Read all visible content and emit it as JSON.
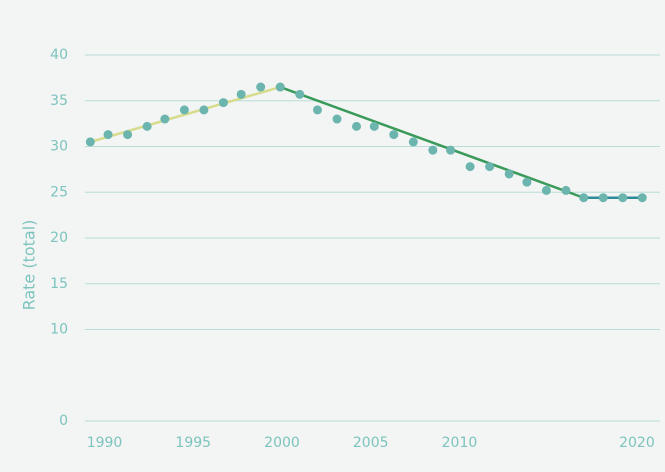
{
  "chart_data": {
    "type": "scatter",
    "y_label": "Rate (total)",
    "x": [
      1989.2,
      1990.2,
      1991.3,
      1992.4,
      1993.4,
      1994.5,
      1995.6,
      1996.7,
      1997.7,
      1998.8,
      1999.9,
      2001.0,
      2002.0,
      2003.1,
      2004.2,
      2005.2,
      2006.3,
      2007.4,
      2008.5,
      2009.5,
      2010.6,
      2011.7,
      2012.8,
      2013.8,
      2014.9,
      2016.0,
      2017.0,
      2018.1,
      2019.2,
      2020.3
    ],
    "values": [
      30.5,
      31.3,
      31.3,
      32.2,
      33,
      34,
      34,
      34.8,
      35.7,
      36.5,
      36.5,
      35.7,
      34,
      33,
      32.2,
      32.2,
      31.3,
      30.5,
      29.6,
      29.6,
      27.8,
      27.8,
      27,
      26.1,
      25.2,
      25.2,
      24.4,
      24.4,
      24.4,
      24.4
    ],
    "color": "#6bb5ae",
    "trends": [
      {
        "color": "#d6dc8c",
        "x": [
          1989.2,
          1999.9
        ],
        "values": [
          30.5,
          36.5
        ]
      },
      {
        "color": "#3a9a5a",
        "x": [
          1999.9,
          2017.0
        ],
        "values": [
          36.5,
          24.4
        ]
      },
      {
        "color": "#2e8b99",
        "x": [
          2017.0,
          2020.3
        ],
        "values": [
          24.4,
          24.4
        ]
      }
    ],
    "xlim": [
      1988.9,
      2021.3
    ],
    "xticks": [
      1990,
      1995,
      2000,
      2005,
      2010,
      2020
    ],
    "ylim": [
      0,
      40
    ],
    "yticks": [
      0,
      10,
      15,
      20,
      25,
      30,
      35,
      40
    ],
    "grid": true
  }
}
